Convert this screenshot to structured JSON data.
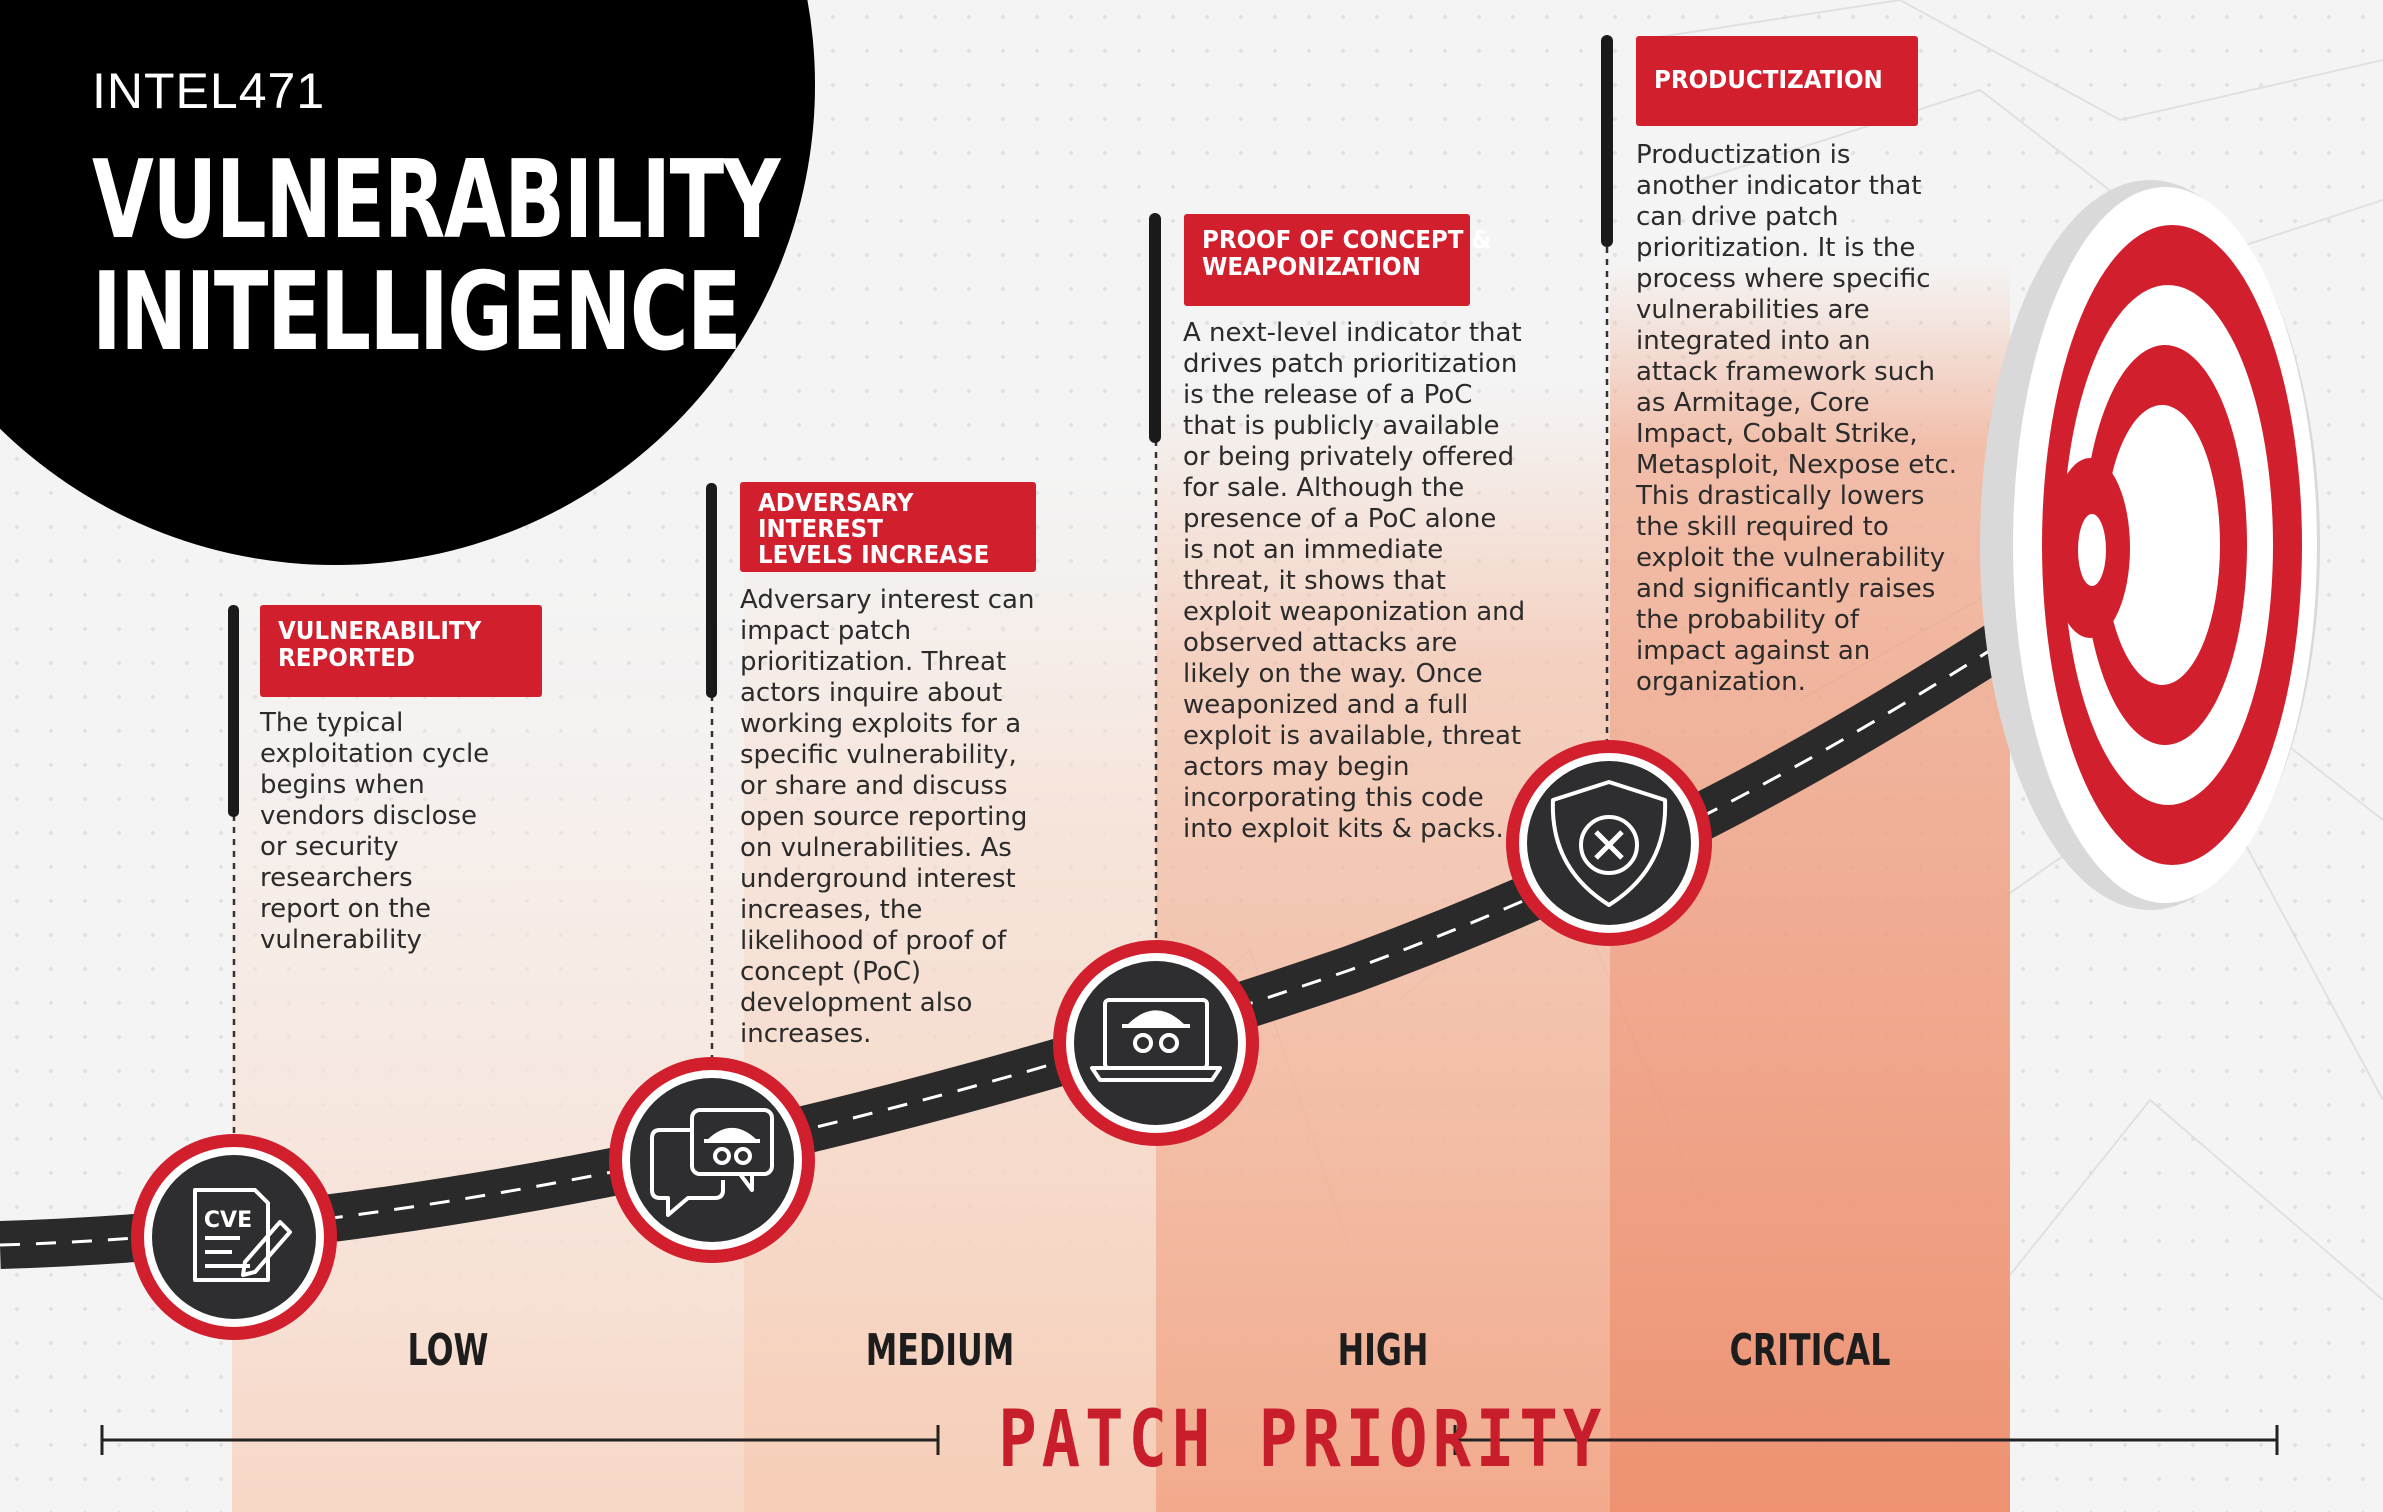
{
  "brand": {
    "logo_prefix": "",
    "logo_text": "INTEL",
    "logo_number": "471"
  },
  "title": {
    "line1": "VULNERABILITY",
    "line2": "INITELLIGENCE"
  },
  "stages": [
    {
      "badge_lines": [
        "VULNERABILITY",
        "REPORTED"
      ],
      "description_lines": [
        "The typical",
        "exploitation cycle",
        "begins when",
        "vendors disclose",
        "or security",
        "researchers",
        "report on the",
        "vulnerability"
      ],
      "icon": "cve-document-icon",
      "icon_label": "CVE"
    },
    {
      "badge_lines": [
        "ADVERSARY",
        "INTEREST",
        "LEVELS INCREASE"
      ],
      "description_lines": [
        "Adversary interest can",
        "impact patch",
        "prioritization. Threat",
        "actors inquire about",
        "working exploits for a",
        "specific vulnerability,",
        "or share and discuss",
        "open source reporting",
        "on vulnerabilities. As",
        "underground interest",
        "increases, the",
        "likelihood of proof of",
        "concept (PoC)",
        "development also",
        "increases."
      ],
      "icon": "chat-spy-icon"
    },
    {
      "badge_lines": [
        "PROOF OF CONCEPT &",
        "WEAPONIZATION"
      ],
      "description_lines": [
        "A next-level indicator that",
        "drives patch prioritization",
        "is the release of a PoC",
        "that is publicly available",
        "or being privately offered",
        "for sale. Although the",
        "presence of a PoC alone",
        "is not an immediate",
        "threat, it shows that",
        "exploit weaponization and",
        "observed attacks are",
        "likely on the way. Once",
        "weaponized and a full",
        "exploit is available, threat",
        "actors may begin",
        "incorporating this code",
        "into exploit kits & packs."
      ],
      "icon": "laptop-spy-icon"
    },
    {
      "badge_lines": [
        "PRODUCTIZATION"
      ],
      "description_lines": [
        "Productization is",
        "another indicator that",
        "can drive patch",
        "prioritization. It is the",
        "process where specific",
        "vulnerabilities are",
        "integrated into an",
        "attack framework such",
        "as Armitage, Core",
        "Impact, Cobalt Strike,",
        "Metasploit, Nexpose etc.",
        "This drastically lowers",
        "the skill required to",
        "exploit the vulnerability",
        "and significantly raises",
        "the probability of",
        "impact against an",
        "organization."
      ],
      "icon": "shield-x-icon"
    }
  ],
  "levels": [
    "LOW",
    "MEDIUM",
    "HIGH",
    "CRITICAL"
  ],
  "axis_label": "PATCH PRIORITY",
  "colors": {
    "accent_red": "#d21f2e",
    "dark": "#2e2e30",
    "black": "#000000"
  }
}
